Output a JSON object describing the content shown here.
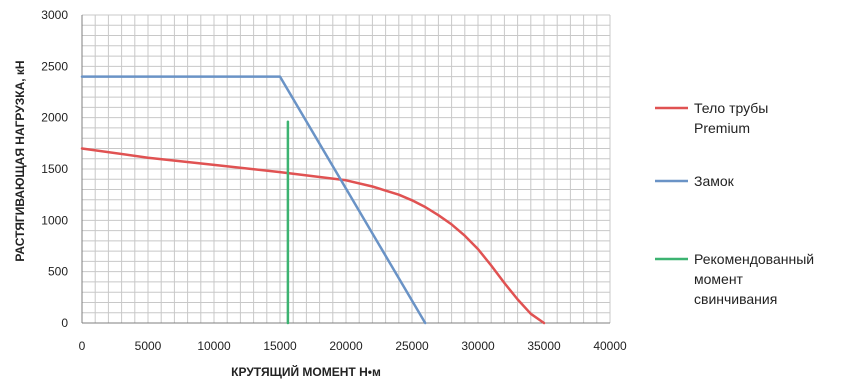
{
  "chart_data": {
    "type": "line",
    "xlabel": "КРУТЯЩИЙ МОМЕНТ Н•м",
    "ylabel": "РАСТЯГИВАЮЩАЯ НАГРУЗКА, кН",
    "xlim": [
      0,
      40000
    ],
    "ylim": [
      0,
      3000
    ],
    "x_ticks": [
      0,
      5000,
      10000,
      15000,
      20000,
      25000,
      30000,
      35000,
      40000
    ],
    "y_ticks": [
      0,
      500,
      1000,
      1500,
      2000,
      2500,
      3000
    ],
    "x_tick_labels": [
      "0",
      "5000",
      "10000",
      "15000",
      "20000",
      "25000",
      "30000",
      "35000",
      "40000"
    ],
    "y_tick_labels": [
      "0",
      "500",
      "1000",
      "1500",
      "2000",
      "2500",
      "3000"
    ],
    "grid": true,
    "legend_position": "right",
    "series": [
      {
        "name": [
          "Тело трубы",
          "Premium"
        ],
        "color": "#e05252",
        "x": [
          0,
          5000,
          10000,
          15000,
          20000,
          22000,
          24000,
          25000,
          26000,
          27000,
          28000,
          29000,
          30000,
          31000,
          32000,
          33000,
          34000,
          35000
        ],
        "y": [
          1700,
          1610,
          1540,
          1470,
          1390,
          1330,
          1250,
          1195,
          1130,
          1050,
          960,
          850,
          720,
          560,
          390,
          230,
          90,
          0
        ]
      },
      {
        "name": [
          "Замок"
        ],
        "color": "#6a93c6",
        "x": [
          0,
          15000,
          26000
        ],
        "y": [
          2400,
          2400,
          0
        ]
      },
      {
        "name": [
          "Рекомендованный",
          "момент",
          "свинчивания"
        ],
        "color": "#3cb371",
        "x": [
          15600,
          15600
        ],
        "y": [
          0,
          1960
        ]
      }
    ]
  }
}
